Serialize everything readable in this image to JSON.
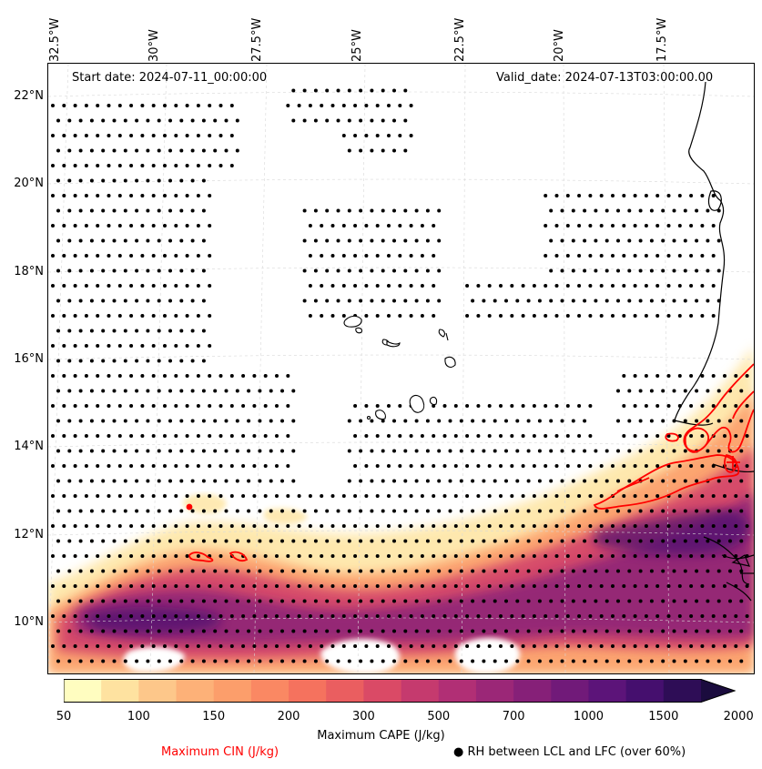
{
  "map": {
    "start_date": "Start date: 2024-07-11_00:00:00",
    "valid_date": "Valid_date: 2024-07-13T03:00:00.00",
    "lon_labels": [
      "32.5°W",
      "30°W",
      "27.5°W",
      "25°W",
      "22.5°W",
      "20°W",
      "17.5°W"
    ],
    "lat_labels": [
      "22°N",
      "20°N",
      "18°N",
      "16°N",
      "14°N",
      "12°N",
      "10°N"
    ],
    "colors": {
      "cin_contour": "#ff0000",
      "coastline": "#000000",
      "stipple": "#000000",
      "gridline": "#cccccc"
    }
  },
  "colorbar": {
    "label": "Maximum CAPE (J/kg)",
    "ticks": [
      "50",
      "100",
      "150",
      "200",
      "300",
      "500",
      "700",
      "1000",
      "1500",
      "2000"
    ],
    "colors": [
      "#fffdc0",
      "#fee2a0",
      "#fdc78a",
      "#fdb178",
      "#fc9e6b",
      "#fa8863",
      "#f5725e",
      "#ea5e60",
      "#da4a66",
      "#c53a6e",
      "#b12f75",
      "#9b2777",
      "#862078",
      "#711a79",
      "#5c1479",
      "#450f6e",
      "#2e0d56",
      "#1b0c3e"
    ]
  },
  "legend": {
    "cin": "Maximum CIN (J/kg)",
    "rh": "● RH between LCL and LFC (over 60%)"
  }
}
